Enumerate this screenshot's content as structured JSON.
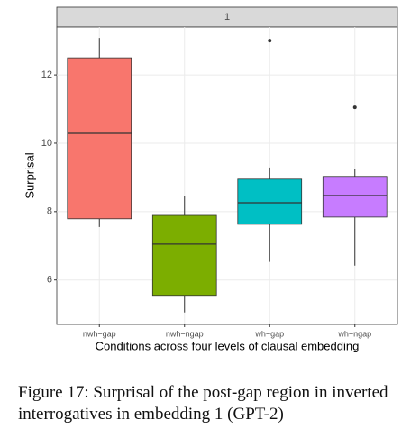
{
  "chart_data": {
    "type": "box",
    "panel_label": "1",
    "x_label": "Conditions across four levels of clausal embedding",
    "y_label": "Surprisal",
    "categories": [
      "nwh−gap",
      "nwh−ngap",
      "wh−gap",
      "wh−ngap"
    ],
    "colors": [
      "#F8766D",
      "#7CAE00",
      "#00BFC4",
      "#C77CFF"
    ],
    "boxes": [
      {
        "low": 7.55,
        "q1": 7.79,
        "median": 10.29,
        "q3": 12.5,
        "high": 13.08,
        "outliers": []
      },
      {
        "low": 5.05,
        "q1": 5.55,
        "median": 7.05,
        "q3": 7.89,
        "high": 8.45,
        "outliers": []
      },
      {
        "low": 6.53,
        "q1": 7.63,
        "median": 8.26,
        "q3": 8.95,
        "high": 9.29,
        "outliers": [
          13.0
        ]
      },
      {
        "low": 6.42,
        "q1": 7.84,
        "median": 8.47,
        "q3": 9.03,
        "high": 9.26,
        "outliers": [
          11.05
        ]
      }
    ],
    "ylim": [
      4.7,
      13.4
    ],
    "yticks": [
      6,
      8,
      10,
      12
    ],
    "grid": true
  },
  "caption": "Figure 17: Surprisal of the post-gap region in inverted interrogatives in embedding 1 (GPT-2)"
}
